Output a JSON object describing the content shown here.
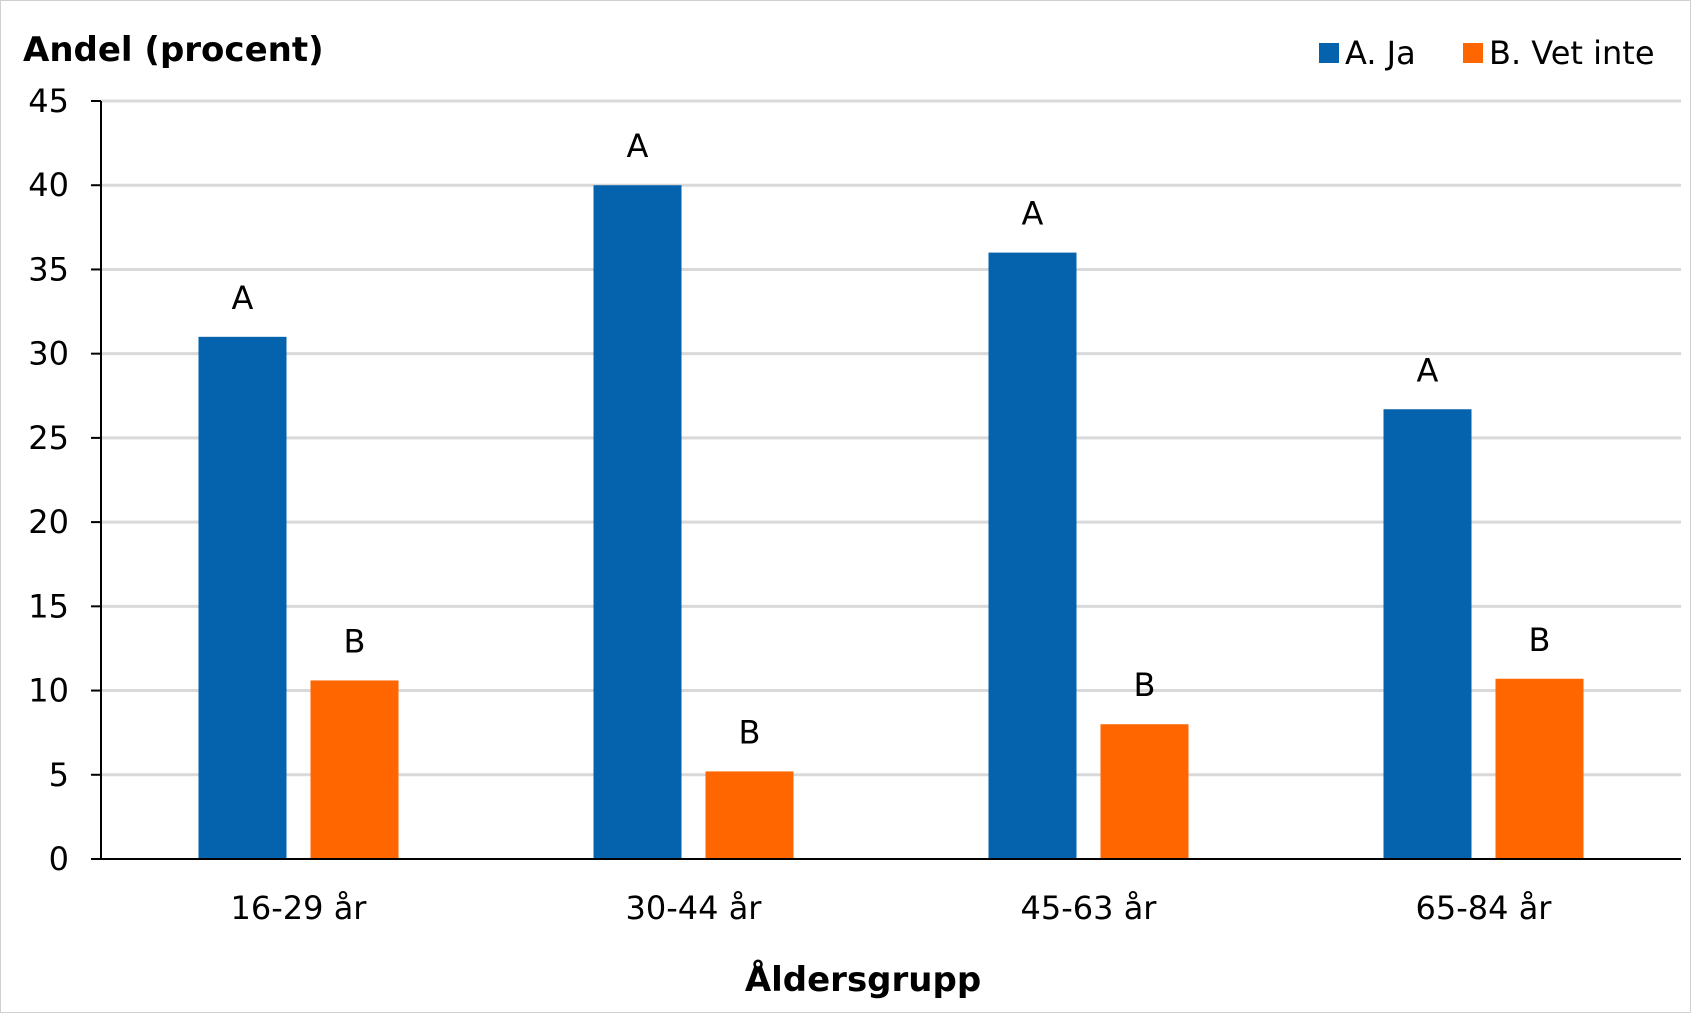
{
  "chart_data": {
    "type": "bar",
    "ylabel": "Andel (procent)",
    "xlabel": "Åldersgrupp",
    "categories": [
      "16-29 år",
      "30-44 år",
      "45-63 år",
      "65-84 år"
    ],
    "ylim": [
      0,
      45
    ],
    "yticks": [
      0,
      5,
      10,
      15,
      20,
      25,
      30,
      35,
      40,
      45
    ],
    "grid": true,
    "legend_position": "top-right",
    "series": [
      {
        "name": "A. Ja",
        "color": "#0563AD",
        "values": [
          31,
          40,
          36,
          26.7
        ],
        "labels": [
          "A",
          "A",
          "A",
          "A"
        ]
      },
      {
        "name": "B. Vet inte",
        "color": "#FF6600",
        "values": [
          10.6,
          5.2,
          8,
          10.7
        ],
        "labels": [
          "B",
          "B",
          "B",
          "B"
        ]
      }
    ]
  }
}
